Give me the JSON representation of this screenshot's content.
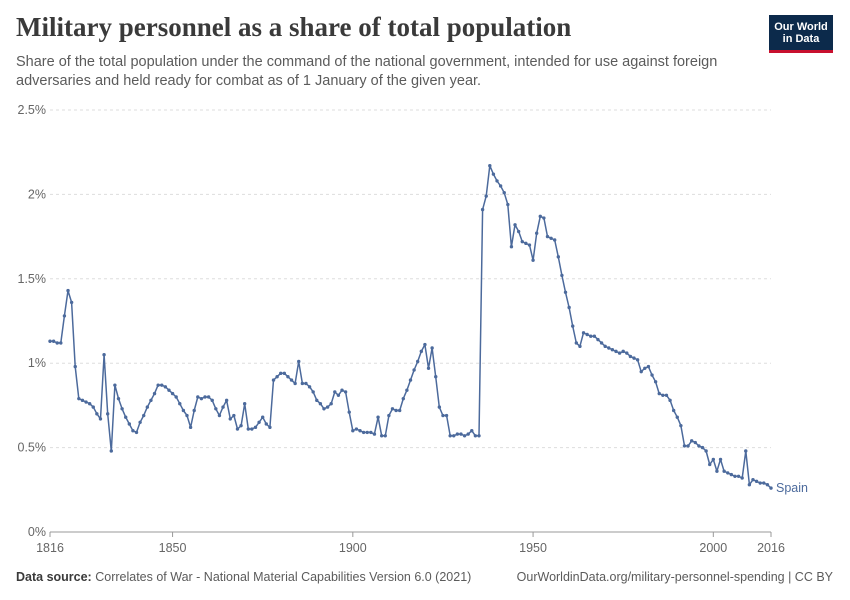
{
  "header": {
    "title": "Military personnel as a share of total population",
    "subtitle": "Share of the total population under the command of the national government, intended for use against foreign adversaries and held ready for combat as of 1 January of the given year.",
    "logo_line1": "Our World",
    "logo_line2": "in Data"
  },
  "footer": {
    "source_label": "Data source:",
    "source_text": "Correlates of War - National Material Capabilities Version 6.0 (2021)",
    "url_license": "OurWorldinData.org/military-personnel-spending | CC BY"
  },
  "colors": {
    "series": "#4c6a9c",
    "grid": "#dddddd",
    "axis": "#999999",
    "tick_text": "#666666",
    "logo_bg": "#0c2a4b",
    "logo_accent": "#c8102e"
  },
  "chart_data": {
    "type": "line",
    "title": "Military personnel as a share of total population",
    "xlabel": "",
    "ylabel": "",
    "xlim": [
      1816,
      2016
    ],
    "ylim": [
      0,
      2.5
    ],
    "x_ticks": [
      {
        "value": 1816,
        "label": "1816"
      },
      {
        "value": 1850,
        "label": "1850"
      },
      {
        "value": 1900,
        "label": "1900"
      },
      {
        "value": 1950,
        "label": "1950"
      },
      {
        "value": 2000,
        "label": "2000"
      },
      {
        "value": 2016,
        "label": "2016"
      }
    ],
    "y_ticks": [
      {
        "value": 0,
        "label": "0%"
      },
      {
        "value": 0.5,
        "label": "0.5%"
      },
      {
        "value": 1,
        "label": "1%"
      },
      {
        "value": 1.5,
        "label": "1.5%"
      },
      {
        "value": 2,
        "label": "2%"
      },
      {
        "value": 2.5,
        "label": "2.5%"
      }
    ],
    "grid": true,
    "series": [
      {
        "name": "Spain",
        "x": [
          1816,
          1817,
          1818,
          1819,
          1820,
          1821,
          1822,
          1823,
          1824,
          1825,
          1826,
          1827,
          1828,
          1829,
          1830,
          1831,
          1832,
          1833,
          1834,
          1835,
          1836,
          1837,
          1838,
          1839,
          1840,
          1841,
          1842,
          1843,
          1844,
          1845,
          1846,
          1847,
          1848,
          1849,
          1850,
          1851,
          1852,
          1853,
          1854,
          1855,
          1856,
          1857,
          1858,
          1859,
          1860,
          1861,
          1862,
          1863,
          1864,
          1865,
          1866,
          1867,
          1868,
          1869,
          1870,
          1871,
          1872,
          1873,
          1874,
          1875,
          1876,
          1877,
          1878,
          1879,
          1880,
          1881,
          1882,
          1883,
          1884,
          1885,
          1886,
          1887,
          1888,
          1889,
          1890,
          1891,
          1892,
          1893,
          1894,
          1895,
          1896,
          1897,
          1898,
          1899,
          1900,
          1901,
          1902,
          1903,
          1904,
          1905,
          1906,
          1907,
          1908,
          1909,
          1910,
          1911,
          1912,
          1913,
          1914,
          1915,
          1916,
          1917,
          1918,
          1919,
          1920,
          1921,
          1922,
          1923,
          1924,
          1925,
          1926,
          1927,
          1928,
          1929,
          1930,
          1931,
          1932,
          1933,
          1934,
          1935,
          1936,
          1937,
          1938,
          1939,
          1940,
          1941,
          1942,
          1943,
          1944,
          1945,
          1946,
          1947,
          1948,
          1949,
          1950,
          1951,
          1952,
          1953,
          1954,
          1955,
          1956,
          1957,
          1958,
          1959,
          1960,
          1961,
          1962,
          1963,
          1964,
          1965,
          1966,
          1967,
          1968,
          1969,
          1970,
          1971,
          1972,
          1973,
          1974,
          1975,
          1976,
          1977,
          1978,
          1979,
          1980,
          1981,
          1982,
          1983,
          1984,
          1985,
          1986,
          1987,
          1988,
          1989,
          1990,
          1991,
          1992,
          1993,
          1994,
          1995,
          1996,
          1997,
          1998,
          1999,
          2000,
          2001,
          2002,
          2003,
          2004,
          2005,
          2006,
          2007,
          2008,
          2009,
          2010,
          2011,
          2012,
          2013,
          2014,
          2015,
          2016
        ],
        "values": [
          1.13,
          1.13,
          1.12,
          1.12,
          1.28,
          1.43,
          1.36,
          0.98,
          0.79,
          0.78,
          0.77,
          0.76,
          0.74,
          0.7,
          0.67,
          1.05,
          0.7,
          0.48,
          0.87,
          0.79,
          0.73,
          0.68,
          0.64,
          0.6,
          0.59,
          0.65,
          0.69,
          0.74,
          0.78,
          0.82,
          0.87,
          0.87,
          0.86,
          0.84,
          0.82,
          0.8,
          0.76,
          0.72,
          0.69,
          0.62,
          0.72,
          0.8,
          0.79,
          0.8,
          0.8,
          0.78,
          0.73,
          0.69,
          0.74,
          0.78,
          0.67,
          0.69,
          0.61,
          0.63,
          0.76,
          0.61,
          0.61,
          0.62,
          0.65,
          0.68,
          0.64,
          0.62,
          0.9,
          0.92,
          0.94,
          0.94,
          0.92,
          0.9,
          0.88,
          1.01,
          0.88,
          0.88,
          0.86,
          0.83,
          0.78,
          0.76,
          0.73,
          0.74,
          0.76,
          0.83,
          0.81,
          0.84,
          0.83,
          0.71,
          0.6,
          0.61,
          0.6,
          0.59,
          0.59,
          0.59,
          0.58,
          0.68,
          0.57,
          0.57,
          0.69,
          0.73,
          0.72,
          0.72,
          0.79,
          0.84,
          0.9,
          0.96,
          1.01,
          1.07,
          1.11,
          0.97,
          1.09,
          0.92,
          0.74,
          0.69,
          0.69,
          0.57,
          0.57,
          0.58,
          0.58,
          0.57,
          0.58,
          0.6,
          0.57,
          0.57,
          1.91,
          1.99,
          2.17,
          2.12,
          2.08,
          2.05,
          2.01,
          1.94,
          1.69,
          1.82,
          1.78,
          1.72,
          1.71,
          1.7,
          1.61,
          1.77,
          1.87,
          1.86,
          1.75,
          1.74,
          1.73,
          1.63,
          1.52,
          1.42,
          1.33,
          1.22,
          1.12,
          1.1,
          1.18,
          1.17,
          1.16,
          1.16,
          1.14,
          1.12,
          1.1,
          1.09,
          1.08,
          1.07,
          1.06,
          1.07,
          1.06,
          1.04,
          1.03,
          1.02,
          0.95,
          0.97,
          0.98,
          0.93,
          0.89,
          0.82,
          0.81,
          0.81,
          0.78,
          0.72,
          0.68,
          0.63,
          0.51,
          0.51,
          0.54,
          0.53,
          0.51,
          0.5,
          0.48,
          0.4,
          0.43,
          0.36,
          0.43,
          0.36,
          0.35,
          0.34,
          0.33,
          0.33,
          0.32,
          0.48,
          0.28,
          0.31,
          0.3,
          0.29,
          0.29,
          0.28,
          0.26
        ]
      }
    ]
  }
}
